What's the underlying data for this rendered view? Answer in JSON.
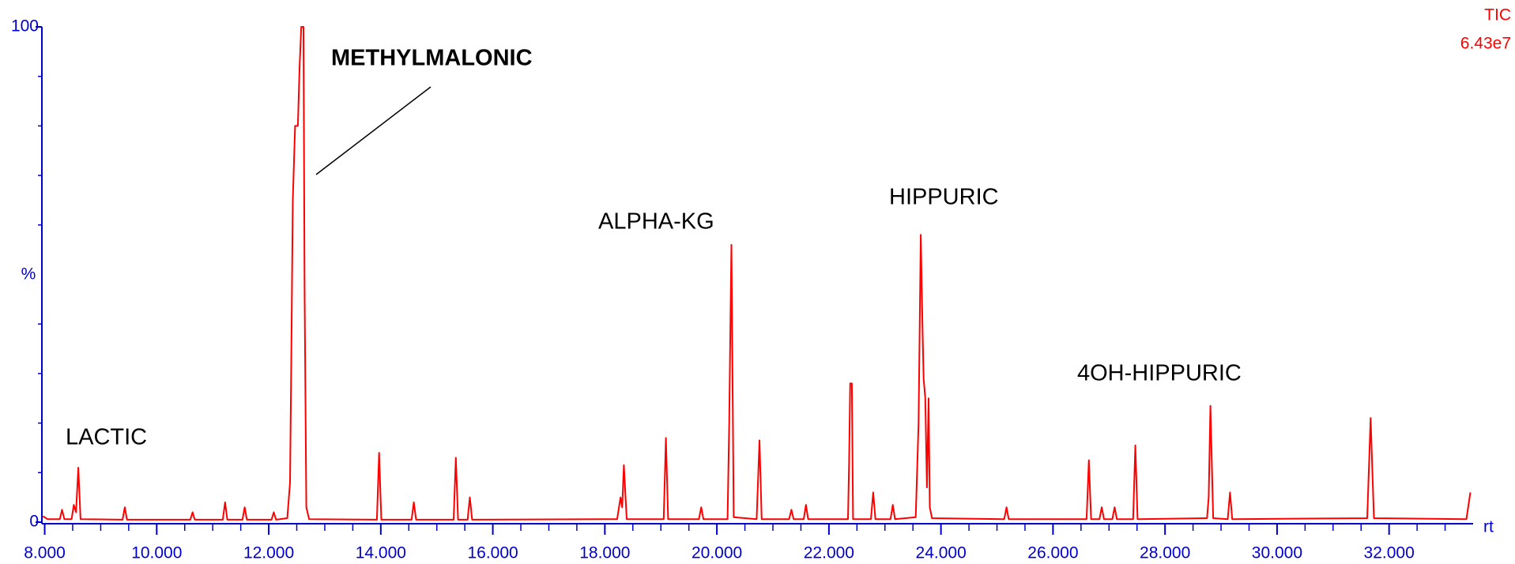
{
  "chart_data": {
    "type": "line",
    "header": [
      "TIC",
      "6.43e7"
    ],
    "x_label": "rt",
    "y_label": "%",
    "color": "#ff0000",
    "annotations": [
      "LACTIC",
      "METHYLMALONIC",
      "ALPHA-KG",
      "HIPPURIC",
      "4OH-HIPPURIC"
    ],
    "xlim": [
      7.95,
      33.5
    ],
    "ylim": [
      0,
      100
    ],
    "xticks": [
      {
        "value": 8,
        "label": "8.000"
      },
      {
        "value": 10,
        "label": "10.000"
      },
      {
        "value": 12,
        "label": "12.000"
      },
      {
        "value": 14,
        "label": "14.000"
      },
      {
        "value": 16,
        "label": "16.000"
      },
      {
        "value": 18,
        "label": "18.000"
      },
      {
        "value": 20,
        "label": "20.000"
      },
      {
        "value": 22,
        "label": "22.000"
      },
      {
        "value": 24,
        "label": "24.000"
      },
      {
        "value": 26,
        "label": "26.000"
      },
      {
        "value": 28,
        "label": "28.000"
      },
      {
        "value": 30,
        "label": "30.000"
      },
      {
        "value": 32,
        "label": "32.000"
      }
    ],
    "x_minor_ticks": [
      8.5,
      9,
      9.5,
      10.5,
      11,
      11.5,
      12.5,
      13,
      13.5,
      14.5,
      15,
      15.5,
      16.5,
      17,
      17.5,
      18.5,
      19,
      19.5,
      20.5,
      21,
      21.5,
      22.5,
      23,
      23.5,
      24.5,
      25,
      25.5,
      26.5,
      27,
      27.5,
      28.5,
      29,
      29.5,
      30.5,
      31,
      31.5,
      32.5,
      33
    ],
    "yticks": [
      0,
      100
    ],
    "y_minor_ticks": [
      10,
      20,
      30,
      40,
      60,
      70,
      80,
      90
    ],
    "x": [
      7.97,
      8.05,
      8.27,
      8.31,
      8.35,
      8.48,
      8.52,
      8.56,
      8.6,
      8.64,
      9.39,
      9.43,
      9.47,
      10.6,
      10.64,
      10.68,
      11.18,
      11.22,
      11.26,
      11.53,
      11.57,
      11.61,
      12.05,
      12.09,
      12.13,
      12.33,
      12.38,
      12.4,
      12.43,
      12.47,
      12.52,
      12.55,
      12.58,
      12.62,
      12.64,
      12.67,
      12.72,
      13.93,
      13.97,
      14.01,
      14.55,
      14.59,
      14.63,
      15.3,
      15.34,
      15.38,
      15.55,
      15.59,
      15.63,
      18.22,
      18.28,
      18.31,
      18.34,
      18.39,
      19.05,
      19.09,
      19.13,
      19.68,
      19.72,
      19.76,
      20.19,
      20.22,
      20.26,
      20.3,
      20.71,
      20.76,
      20.8,
      21.29,
      21.33,
      21.37,
      21.55,
      21.59,
      21.63,
      22.34,
      22.36,
      22.38,
      22.41,
      22.43,
      22.75,
      22.79,
      22.83,
      23.1,
      23.14,
      23.18,
      23.55,
      23.6,
      23.64,
      23.67,
      23.69,
      23.72,
      23.75,
      23.78,
      23.8,
      23.84,
      25.13,
      25.17,
      25.21,
      26.6,
      26.64,
      26.68,
      26.83,
      26.87,
      26.91,
      27.06,
      27.1,
      27.14,
      27.43,
      27.47,
      27.51,
      28.75,
      28.78,
      28.81,
      28.86,
      29.12,
      29.16,
      29.2,
      31.61,
      31.67,
      31.73,
      33.38,
      33.45
    ],
    "values": [
      1.2,
      0.6,
      0.6,
      2.5,
      0.6,
      0.6,
      3.5,
      2,
      11,
      0.6,
      0.5,
      3,
      0.5,
      0.5,
      2,
      0.5,
      0.5,
      4,
      0.5,
      0.5,
      3,
      0.5,
      0.5,
      2,
      0.5,
      0.8,
      8,
      30,
      65,
      80,
      80,
      92,
      100,
      100,
      47,
      3,
      0.6,
      0.5,
      14,
      0.5,
      0.5,
      4,
      0.5,
      0.5,
      13,
      0.5,
      0.5,
      5,
      0.5,
      0.6,
      5,
      3,
      11.5,
      0.6,
      0.6,
      17,
      0.6,
      0.6,
      3,
      0.6,
      0.6,
      20,
      56,
      1,
      0.6,
      16.5,
      0.6,
      0.6,
      2.5,
      0.6,
      0.6,
      3.5,
      0.6,
      0.6,
      12,
      28,
      28,
      0.6,
      0.6,
      6,
      0.6,
      0.6,
      3.5,
      0.6,
      1,
      20,
      58,
      40,
      29,
      25,
      7,
      25,
      3,
      0.8,
      0.6,
      3,
      0.6,
      0.6,
      12.5,
      0.6,
      0.6,
      3,
      0.6,
      0.6,
      3,
      0.6,
      0.6,
      15.5,
      0.6,
      0.8,
      5,
      23.5,
      0.8,
      0.6,
      6,
      0.6,
      0.8,
      21,
      0.8,
      0.6,
      6
    ]
  }
}
